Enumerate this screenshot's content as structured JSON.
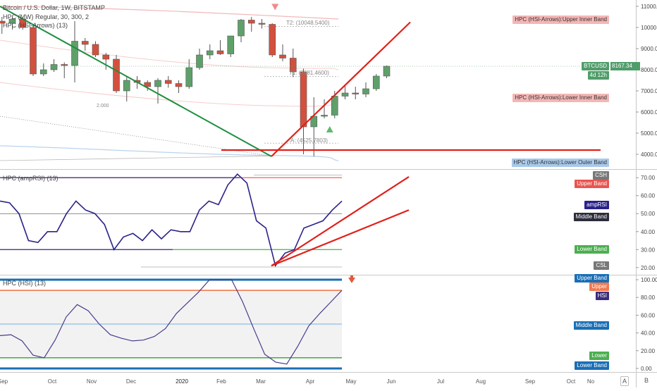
{
  "header": {
    "symbol_title": "Bitcoin / U.S. Dollar, 1W, BITSTAMP",
    "indicator1": "HPC (MW) Regular, 30, 300, 2",
    "indicator2": "HPC (HSI-Arrows) (13)"
  },
  "pane2_title": "HPC (ampRSI) (13)",
  "pane3_title": "HPC (HSI) (13)",
  "annotations": {
    "t2": "T2: (10048.5400)",
    "t1": "T1: (7681.4600)",
    "a": "A: (4525.7803)",
    "fib": "2.000"
  },
  "price_tags": {
    "upper_inner": "HPC (HSI-Arrows):Upper Inner Band",
    "btcusd": "BTCUSD",
    "price": "8167.34",
    "countdown": "4d 12h",
    "lower_inner": "HPC (HSI-Arrows):Lower Inner Band",
    "lower_outer": "HPC (HSI-Arrows):Lower Outer Band"
  },
  "rsi_tags": {
    "csh": "CSH",
    "upper": "Upper Band",
    "amp": "ampRSI",
    "middle": "Middle Band",
    "lower": "Lower Band",
    "csl": "CSL"
  },
  "hsi_tags": {
    "upper_band": "Upper Band",
    "upper": "Upper",
    "hsi": "HSI",
    "middle": "Middle Band",
    "lower": "Lower",
    "lower_band": "Lower Band"
  },
  "axis_corner": {
    "a": "A",
    "b": "B"
  },
  "colors": {
    "up": "#5fa06a",
    "down": "#d4503e",
    "trend_green": "#1e8e3e",
    "trend_red": "#e0201a",
    "rsi_line": "#2a2288",
    "hsi_line": "#4b3a8c",
    "band_blue": "#1a6fb5",
    "band_orange": "#f07a50",
    "band_green": "#4caf50"
  },
  "chart_data": [
    {
      "type": "candlestick",
      "title": "Bitcoin / U.S. Dollar, 1W, BITSTAMP",
      "ylim": [
        3300,
        11300
      ],
      "y_ticks": [
        "11000.00",
        "10000.00",
        "9000.00",
        "8000.00",
        "7000.00",
        "6000.00",
        "5000.00",
        "4000.00"
      ],
      "x_ticks": [
        "Sep",
        "Oct",
        "Nov",
        "Dec",
        "2020",
        "Feb",
        "Mar",
        "Apr",
        "May",
        "Jun",
        "Jul",
        "Aug",
        "Sep",
        "Oct",
        "No"
      ],
      "candles": [
        {
          "o": 10400,
          "h": 10900,
          "l": 10000,
          "c": 10300
        },
        {
          "o": 10300,
          "h": 10500,
          "l": 9700,
          "c": 10200
        },
        {
          "o": 10200,
          "h": 10450,
          "l": 9900,
          "c": 10400
        },
        {
          "o": 10400,
          "h": 10450,
          "l": 9900,
          "c": 10000
        },
        {
          "o": 10000,
          "h": 10100,
          "l": 7700,
          "c": 7800
        },
        {
          "o": 7800,
          "h": 8300,
          "l": 7700,
          "c": 8000
        },
        {
          "o": 8000,
          "h": 8500,
          "l": 7900,
          "c": 8250
        },
        {
          "o": 8250,
          "h": 8350,
          "l": 7600,
          "c": 8200
        },
        {
          "o": 8200,
          "h": 10300,
          "l": 7400,
          "c": 9350
        },
        {
          "o": 9350,
          "h": 9500,
          "l": 8900,
          "c": 9200
        },
        {
          "o": 9200,
          "h": 9350,
          "l": 8600,
          "c": 8700
        },
        {
          "o": 8700,
          "h": 8800,
          "l": 8000,
          "c": 8500
        },
        {
          "o": 8500,
          "h": 8700,
          "l": 6900,
          "c": 7000
        },
        {
          "o": 7000,
          "h": 7650,
          "l": 6500,
          "c": 7500
        },
        {
          "o": 7500,
          "h": 7700,
          "l": 7100,
          "c": 7400
        },
        {
          "o": 7400,
          "h": 7500,
          "l": 7000,
          "c": 7200
        },
        {
          "o": 7200,
          "h": 7600,
          "l": 6400,
          "c": 7500
        },
        {
          "o": 7500,
          "h": 7700,
          "l": 7150,
          "c": 7350
        },
        {
          "o": 7350,
          "h": 7500,
          "l": 6900,
          "c": 7200
        },
        {
          "o": 7200,
          "h": 8500,
          "l": 7100,
          "c": 8100
        },
        {
          "o": 8100,
          "h": 9000,
          "l": 8000,
          "c": 8700
        },
        {
          "o": 8700,
          "h": 9200,
          "l": 8500,
          "c": 8900
        },
        {
          "o": 8900,
          "h": 9400,
          "l": 8700,
          "c": 8750
        },
        {
          "o": 8750,
          "h": 9600,
          "l": 8600,
          "c": 9600
        },
        {
          "o": 9600,
          "h": 10400,
          "l": 9300,
          "c": 10350
        },
        {
          "o": 10350,
          "h": 10500,
          "l": 9800,
          "c": 10200
        },
        {
          "o": 10200,
          "h": 10400,
          "l": 9950,
          "c": 10150
        },
        {
          "o": 10150,
          "h": 10200,
          "l": 8600,
          "c": 8700
        },
        {
          "o": 8700,
          "h": 9200,
          "l": 8400,
          "c": 8550
        },
        {
          "o": 8550,
          "h": 9000,
          "l": 7650,
          "c": 7900
        },
        {
          "o": 7900,
          "h": 8050,
          "l": 4000,
          "c": 5300
        },
        {
          "o": 5300,
          "h": 6700,
          "l": 3900,
          "c": 5800
        },
        {
          "o": 5800,
          "h": 6600,
          "l": 5700,
          "c": 5850
        },
        {
          "o": 5850,
          "h": 7000,
          "l": 5700,
          "c": 6750
        },
        {
          "o": 6750,
          "h": 7300,
          "l": 6600,
          "c": 6900
        },
        {
          "o": 6900,
          "h": 7200,
          "l": 6600,
          "c": 6850
        },
        {
          "o": 6850,
          "h": 7400,
          "l": 6700,
          "c": 7100
        },
        {
          "o": 7100,
          "h": 7800,
          "l": 7000,
          "c": 7700
        },
        {
          "o": 7700,
          "h": 8200,
          "l": 7600,
          "c": 8167
        }
      ],
      "annotations": {
        "arrow_down_index": 27,
        "arrow_up_index": 33
      }
    },
    {
      "type": "line",
      "title": "HPC (ampRSI) (13)",
      "ylim": [
        16,
        74
      ],
      "y_ticks": [
        "70.00",
        "60.00",
        "50.00",
        "40.00",
        "30.00",
        "20.00"
      ],
      "bands": {
        "upper": 70,
        "middle": 50,
        "lower": 30
      },
      "series": [
        {
          "name": "ampRSI",
          "values": [
            57,
            56,
            50,
            35,
            34,
            40,
            40,
            50,
            57,
            52,
            50,
            44,
            30,
            37,
            39,
            35,
            41,
            36,
            41,
            40,
            40,
            52,
            57,
            55,
            66,
            72,
            67,
            46,
            42,
            21,
            28,
            30,
            42,
            44,
            46,
            52,
            57
          ]
        }
      ]
    },
    {
      "type": "line",
      "title": "HPC (HSI) (13)",
      "ylim": [
        -4,
        104
      ],
      "y_ticks": [
        "100.00",
        "80.00",
        "60.00",
        "40.00",
        "20.00",
        "0.00"
      ],
      "bands": {
        "upper_band": 100,
        "upper": 88,
        "middle": 50,
        "lower": 12,
        "lower_band": 0
      },
      "series": [
        {
          "name": "HSI",
          "values": [
            37,
            38,
            31,
            15,
            12,
            32,
            58,
            72,
            65,
            50,
            38,
            34,
            31,
            32,
            36,
            45,
            62,
            74,
            86,
            100,
            100,
            100,
            75,
            45,
            16,
            7,
            5,
            25,
            48,
            62,
            75,
            88
          ]
        }
      ]
    }
  ]
}
